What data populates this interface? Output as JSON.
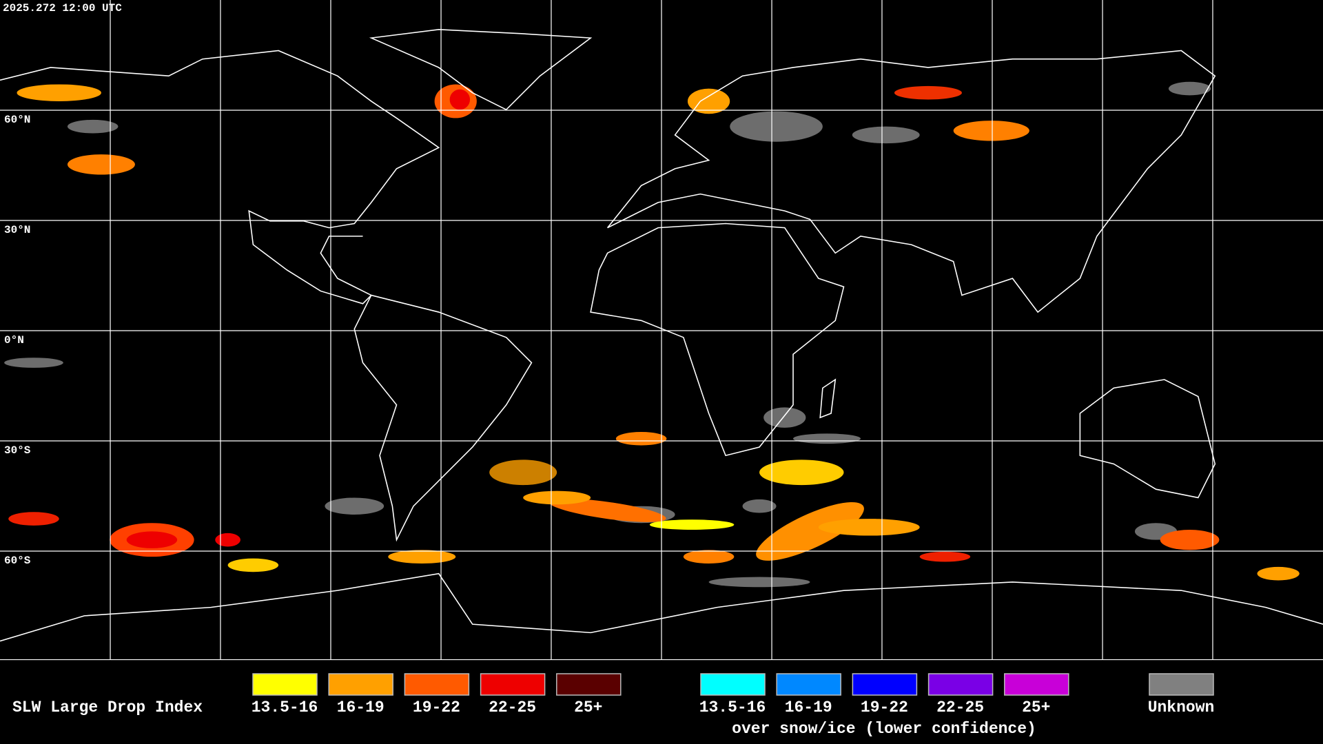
{
  "timestamp": "2025.272 12:00 UTC",
  "latitude_labels": [
    "60°N",
    "30°N",
    "0°N",
    "30°S",
    "60°S"
  ],
  "legend": {
    "title": "SLW Large Drop Index",
    "liquid": [
      {
        "label": "13.5-16",
        "color": "#ffff00"
      },
      {
        "label": "16-19",
        "color": "#ffa000"
      },
      {
        "label": "19-22",
        "color": "#ff5a00"
      },
      {
        "label": "22-25",
        "color": "#ee0000"
      },
      {
        "label": "25+",
        "color": "#5a0000"
      }
    ],
    "snow_ice": [
      {
        "label": "13.5-16",
        "color": "#00ffff"
      },
      {
        "label": "16-19",
        "color": "#0088ff"
      },
      {
        "label": "19-22",
        "color": "#0000ff"
      },
      {
        "label": "22-25",
        "color": "#7a00e6"
      },
      {
        "label": "25+",
        "color": "#c800d8"
      }
    ],
    "snow_ice_note": "over snow/ice (lower confidence)",
    "unknown": {
      "label": "Unknown",
      "color": "#808080"
    }
  }
}
